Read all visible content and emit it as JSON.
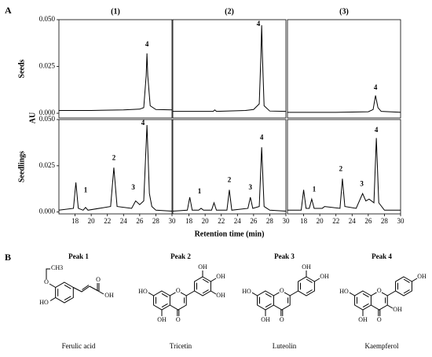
{
  "figure": {
    "panels": [
      "A",
      "B"
    ],
    "y_axis_label": "AU",
    "x_axis_label": "Retention time (min)"
  },
  "chart_data": [
    {
      "type": "line",
      "title": "(1)",
      "ylabel": "Seeds",
      "color": "#000000",
      "xlim": [
        16,
        30
      ],
      "ylim": [
        -0.0025,
        0.05
      ],
      "yticks": [
        {
          "value": 0.05,
          "label": "0.050"
        },
        0.025,
        {
          "value": 0,
          "label": "0.000"
        }
      ],
      "x": [
        16,
        20,
        24,
        26,
        26.5,
        26.8,
        26.9,
        27.0,
        27.3,
        28,
        30
      ],
      "values": [
        0.0015,
        0.0015,
        0.0018,
        0.0022,
        0.003,
        0.02,
        0.032,
        0.02,
        0.004,
        0.002,
        0.0018
      ],
      "annotations": [
        {
          "text": "4",
          "x": 26.9,
          "y": 0.0365
        }
      ]
    },
    {
      "type": "line",
      "title": "(2)",
      "color": "#000000",
      "xlim": [
        16,
        30
      ],
      "ylim": [
        -0.0025,
        0.05
      ],
      "x": [
        16,
        21,
        21.2,
        21.4,
        25,
        26,
        26.7,
        26.9,
        27.0,
        27.1,
        27.3,
        28,
        30
      ],
      "values": [
        0.001,
        0.001,
        0.0018,
        0.001,
        0.0015,
        0.002,
        0.005,
        0.03,
        0.047,
        0.03,
        0.004,
        0.0012,
        0.001
      ],
      "annotations": [
        {
          "text": "4",
          "x": 26.6,
          "y": 0.0475
        }
      ]
    },
    {
      "type": "line",
      "title": "(3)",
      "color": "#000000",
      "xlim": [
        16,
        30
      ],
      "ylim": [
        -0.0025,
        0.05
      ],
      "x": [
        16,
        22,
        26,
        26.6,
        26.9,
        27.2,
        27.6,
        30
      ],
      "values": [
        0.0005,
        0.0005,
        0.0008,
        0.002,
        0.0095,
        0.003,
        0.001,
        0.0005
      ],
      "annotations": [
        {
          "text": "4",
          "x": 26.9,
          "y": 0.0135
        }
      ]
    },
    {
      "type": "line",
      "ylabel": "Seedlings",
      "color": "#000000",
      "xlim": [
        16,
        30
      ],
      "ylim": [
        -0.001,
        0.05
      ],
      "yticks": [
        {
          "value": 0.05,
          "label": "0.050"
        },
        0.025,
        {
          "value": 0,
          "label": "0.000"
        }
      ],
      "xticks": [
        18,
        20,
        22,
        24,
        26,
        28,
        30
      ],
      "x": [
        16,
        17.8,
        18.1,
        18.4,
        19,
        19.3,
        19.6,
        22.4,
        22.8,
        23.2,
        25,
        25.5,
        26,
        26.5,
        26.9,
        27.2,
        27.5,
        28,
        30
      ],
      "values": [
        0.001,
        0.002,
        0.016,
        0.002,
        0.001,
        0.0025,
        0.001,
        0.003,
        0.024,
        0.003,
        0.002,
        0.006,
        0.004,
        0.006,
        0.047,
        0.01,
        0.003,
        0.001,
        0.0005
      ],
      "annotations": [
        {
          "text": "1",
          "x": 19.3,
          "y": 0.0115
        },
        {
          "text": "2",
          "x": 22.8,
          "y": 0.029
        },
        {
          "text": "3",
          "x": 25.2,
          "y": 0.013
        },
        {
          "text": "4",
          "x": 26.4,
          "y": 0.048
        }
      ]
    },
    {
      "type": "line",
      "color": "#000000",
      "xlim": [
        16,
        30
      ],
      "ylim": [
        -0.001,
        0.05
      ],
      "xticks": [
        18,
        20,
        22,
        24,
        26,
        28,
        30
      ],
      "x": [
        16,
        17.8,
        18.1,
        18.4,
        19.2,
        19.5,
        19.8,
        20.8,
        21.1,
        21.4,
        22.7,
        23,
        23.3,
        25.3,
        25.6,
        25.9,
        26.7,
        27,
        27.3,
        28,
        30
      ],
      "values": [
        0.0005,
        0.001,
        0.008,
        0.001,
        0.001,
        0.002,
        0.001,
        0.001,
        0.005,
        0.001,
        0.001,
        0.012,
        0.001,
        0.002,
        0.008,
        0.002,
        0.003,
        0.035,
        0.003,
        0.001,
        0.0005
      ],
      "annotations": [
        {
          "text": "1",
          "x": 19.3,
          "y": 0.011
        },
        {
          "text": "2",
          "x": 23,
          "y": 0.017
        },
        {
          "text": "3",
          "x": 25.6,
          "y": 0.013
        },
        {
          "text": "4",
          "x": 27,
          "y": 0.04
        }
      ]
    },
    {
      "type": "line",
      "color": "#000000",
      "xlim": [
        16,
        30
      ],
      "ylim": [
        -0.001,
        0.05
      ],
      "xticks": [
        18,
        20,
        22,
        24,
        26,
        28,
        30
      ],
      "x": [
        16,
        17.7,
        18,
        18.3,
        18.7,
        19,
        19.3,
        20.3,
        20.6,
        22.5,
        22.8,
        23.1,
        24.5,
        25.3,
        25.7,
        26.1,
        26.7,
        27,
        27.3,
        28,
        30
      ],
      "values": [
        0.001,
        0.001,
        0.012,
        0.002,
        0.002,
        0.007,
        0.002,
        0.002,
        0.003,
        0.002,
        0.018,
        0.003,
        0.002,
        0.01,
        0.006,
        0.007,
        0.005,
        0.04,
        0.005,
        0.001,
        0.001
      ],
      "annotations": [
        {
          "text": "1",
          "x": 19.3,
          "y": 0.012
        },
        {
          "text": "2",
          "x": 22.6,
          "y": 0.023
        },
        {
          "text": "3",
          "x": 25.2,
          "y": 0.015
        },
        {
          "text": "4",
          "x": 27,
          "y": 0.044
        }
      ]
    }
  ],
  "structures": [
    {
      "peak": "Peak 1",
      "name": "Ferulic acid",
      "atoms": [
        "O",
        "CH3",
        "HO",
        "O",
        "OH"
      ]
    },
    {
      "peak": "Peak 2",
      "name": "Tricetin",
      "atoms": [
        "O",
        "O",
        "HO",
        "OH",
        "OH",
        "OH",
        "OH"
      ]
    },
    {
      "peak": "Peak 3",
      "name": "Luteolin",
      "atoms": [
        "O",
        "O",
        "HO",
        "OH",
        "OH",
        "OH"
      ]
    },
    {
      "peak": "Peak 4",
      "name": "Kaempferol",
      "atoms": [
        "O",
        "O",
        "HO",
        "OH",
        "OH",
        "OH"
      ]
    }
  ]
}
